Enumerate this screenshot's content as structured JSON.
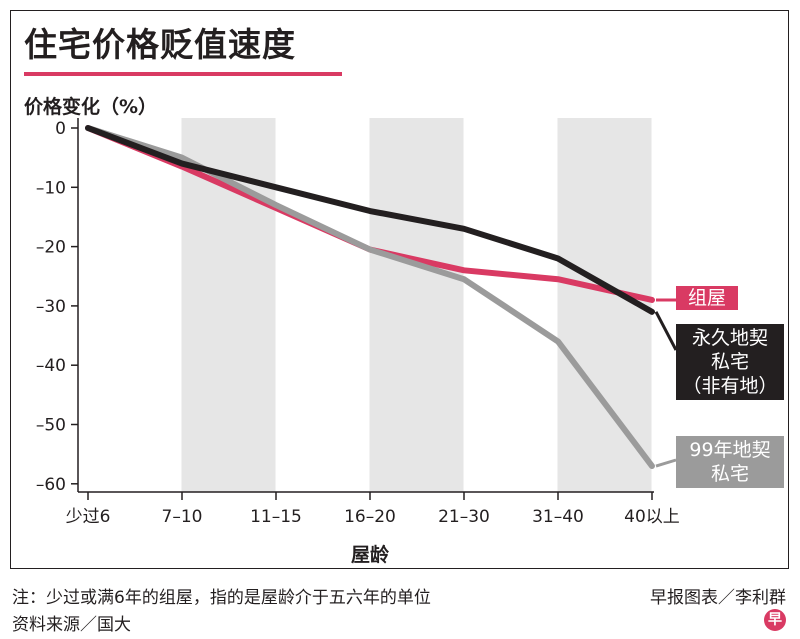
{
  "title": "住宅价格贬值速度",
  "footnote": "注：少过或满6年的组屋，指的是屋龄介于五六年的单位",
  "source": "资料来源／国大",
  "credit": "早报图表／李利群",
  "logo_text": "早",
  "colors": {
    "accent": "#d93a63",
    "hdb": "#d93a63",
    "freehold": "#231f20",
    "lease99": "#9b9b9b",
    "band": "#e6e6e6"
  },
  "chart_data": {
    "type": "line",
    "ylabel": "价格变化（%）",
    "xlabel": "屋龄",
    "categories": [
      "少过6",
      "7–10",
      "11–15",
      "16–20",
      "21–30",
      "31–40",
      "40以上"
    ],
    "ylim": [
      -62,
      2
    ],
    "yticks": [
      0,
      -10,
      -20,
      -30,
      -40,
      -50,
      -60
    ],
    "ytick_labels": [
      "0",
      "–10",
      "–20",
      "–30",
      "–40",
      "–50",
      "–60"
    ],
    "shaded_bands": [
      "7–10",
      "16–20",
      "31–40"
    ],
    "series": [
      {
        "name": "组屋",
        "label_lines": [
          "组屋"
        ],
        "values": [
          0,
          -6.5,
          -13.5,
          -20.5,
          -24,
          -25.5,
          -29
        ]
      },
      {
        "name": "永久地契私宅（非有地）",
        "label_lines": [
          "永久地契",
          "私宅",
          "（非有地）"
        ],
        "values": [
          0,
          -6,
          -10,
          -14,
          -17,
          -22,
          -31
        ]
      },
      {
        "name": "99年地契私宅",
        "label_lines": [
          "99年地契",
          "私宅"
        ],
        "values": [
          0,
          -5,
          -13,
          -20.5,
          -25.5,
          -36,
          -57
        ]
      }
    ]
  }
}
